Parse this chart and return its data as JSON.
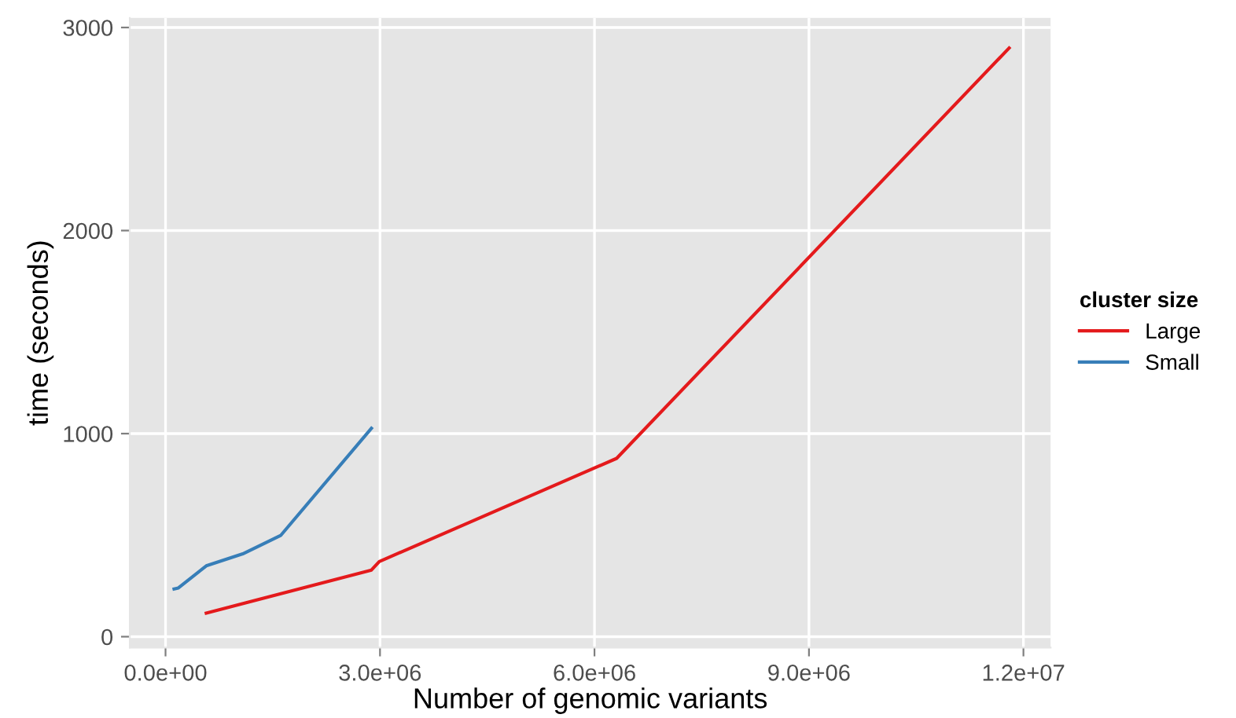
{
  "chart_data": {
    "type": "line",
    "xlabel": "Number of genomic variants",
    "ylabel": "time (seconds)",
    "legend_title": "cluster size",
    "legend": "right",
    "xlim": [
      -500000,
      12380000
    ],
    "ylim": [
      -54,
      3047
    ],
    "xticks": [
      {
        "value": 0,
        "label": "0.0e+00"
      },
      {
        "value": 3000000,
        "label": "3.0e+06"
      },
      {
        "value": 6000000,
        "label": "6.0e+06"
      },
      {
        "value": 9000000,
        "label": "9.0e+06"
      },
      {
        "value": 12000000,
        "label": "1.2e+07"
      }
    ],
    "yticks": [
      0,
      1000,
      2000,
      3000
    ],
    "grid": true,
    "series": [
      {
        "name": "Large",
        "color": "#e41a1c",
        "x": [
          570000,
          2880000,
          2990000,
          6310000,
          11800000
        ],
        "values": [
          116,
          328,
          370,
          878,
          2899
        ]
      },
      {
        "name": "Small",
        "color": "#377eb8",
        "x": [
          120000,
          180000,
          570000,
          1080000,
          1610000,
          2880000
        ],
        "values": [
          235,
          240,
          349,
          408,
          498,
          1026
        ]
      }
    ]
  }
}
